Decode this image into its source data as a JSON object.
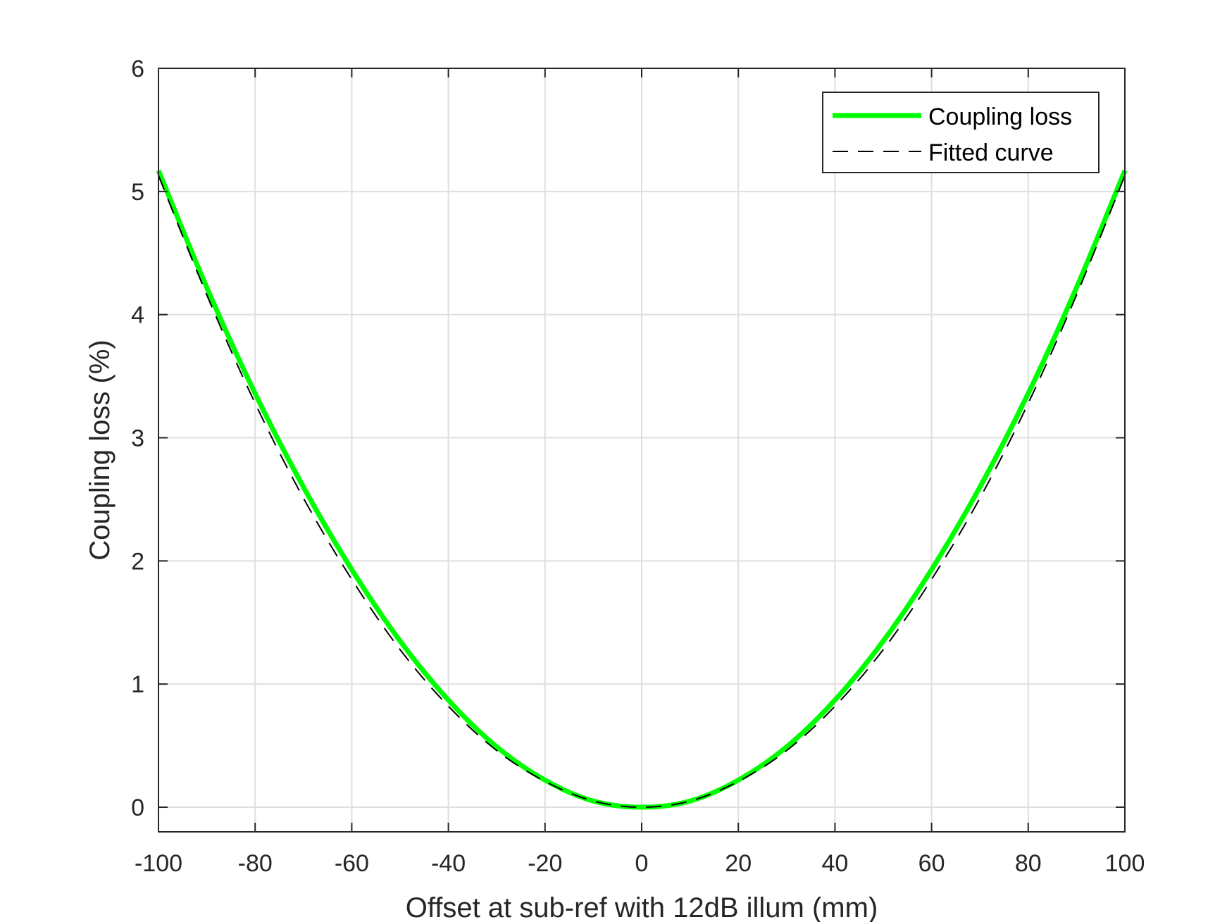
{
  "chart_data": {
    "type": "line",
    "xlabel": "Offset at sub-ref with 12dB illum (mm)",
    "ylabel": "Coupling loss (%)",
    "xlim": [
      -100,
      100
    ],
    "ylim": [
      -0.2,
      6
    ],
    "xticks": [
      "-100",
      "-80",
      "-60",
      "-40",
      "-20",
      "0",
      "20",
      "40",
      "60",
      "80",
      "100"
    ],
    "yticks": [
      "0",
      "1",
      "2",
      "3",
      "4",
      "5",
      "6"
    ],
    "grid": true,
    "legend_position": "top-right",
    "series": [
      {
        "name": "Coupling loss",
        "color": "#00ff00",
        "style": "solid",
        "x": [
          -100,
          -90,
          -80,
          -70,
          -60,
          -50,
          -40,
          -30,
          -20,
          -10,
          0,
          10,
          20,
          30,
          40,
          50,
          60,
          70,
          80,
          90,
          100
        ],
        "y": [
          5.17,
          4.22,
          3.36,
          2.6,
          1.93,
          1.35,
          0.87,
          0.49,
          0.22,
          0.05,
          0.0,
          0.05,
          0.22,
          0.49,
          0.87,
          1.35,
          1.93,
          2.6,
          3.36,
          4.22,
          5.17
        ]
      },
      {
        "name": "Fitted curve",
        "color": "#000000",
        "style": "dashed",
        "x": [
          -100,
          -90,
          -80,
          -70,
          -60,
          -50,
          -40,
          -30,
          -20,
          -10,
          0,
          10,
          20,
          30,
          40,
          50,
          60,
          70,
          80,
          90,
          100
        ],
        "y": [
          5.13,
          4.16,
          3.28,
          2.51,
          1.85,
          1.28,
          0.82,
          0.46,
          0.21,
          0.05,
          0.0,
          0.05,
          0.21,
          0.46,
          0.82,
          1.28,
          1.85,
          2.51,
          3.28,
          4.16,
          5.13
        ]
      }
    ]
  }
}
